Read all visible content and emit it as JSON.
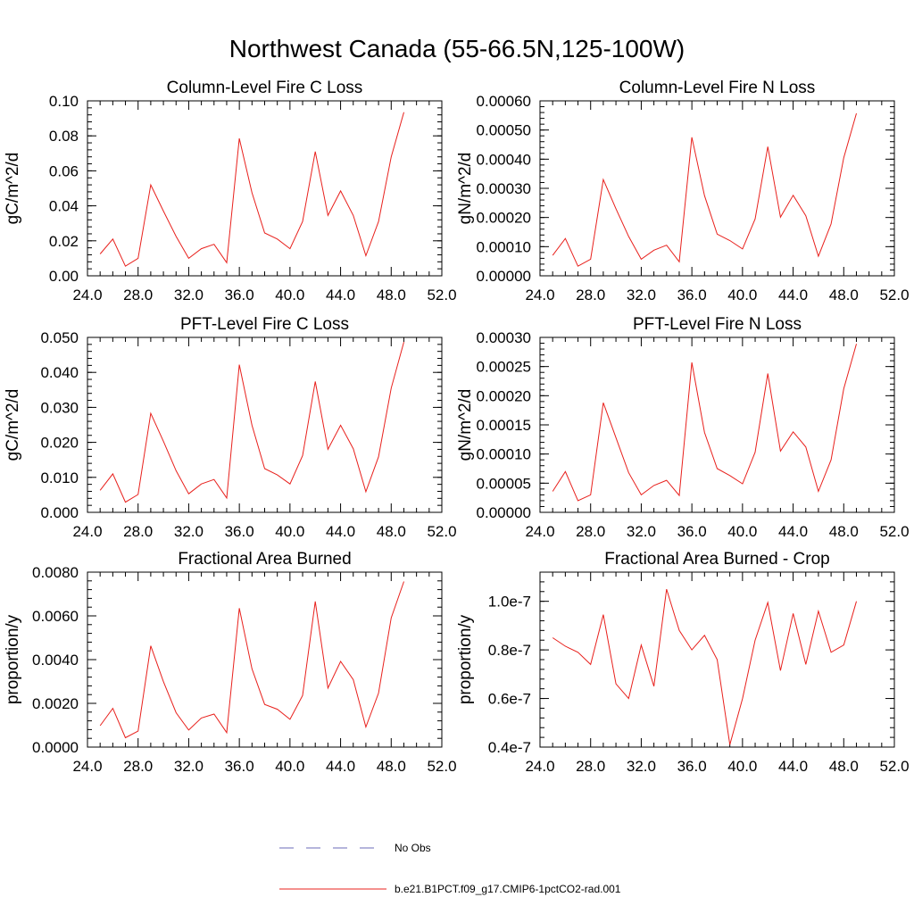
{
  "title": "Northwest Canada (55-66.5N,125-100W)",
  "legend": {
    "items": [
      {
        "label": "No Obs",
        "color": "#6b6bb8",
        "dash": true
      },
      {
        "label": "b.e21.B1PCT.f09_g17.CMIP6-1pctCO2-rad.001",
        "color": "#e8201c",
        "dash": false
      }
    ]
  },
  "line_color": "#e8201c",
  "chart_data": [
    {
      "type": "line",
      "title": "Column-Level Fire C Loss",
      "ylabel": "gC/m^2/d",
      "xlim": [
        24,
        52
      ],
      "ylim": [
        0,
        0.1
      ],
      "xticks": [
        "24.0",
        "28.0",
        "32.0",
        "36.0",
        "40.0",
        "44.0",
        "48.0",
        "52.0"
      ],
      "yticks": [
        "0.00",
        "0.02",
        "0.04",
        "0.06",
        "0.08",
        "0.10"
      ],
      "x": [
        25,
        26,
        27,
        28,
        29,
        30,
        31,
        32,
        33,
        34,
        35,
        36,
        37,
        38,
        39,
        40,
        41,
        42,
        43,
        44,
        45,
        46,
        47,
        48,
        49
      ],
      "series": [
        {
          "values": [
            0.0125,
            0.021,
            0.0055,
            0.01,
            0.052,
            0.037,
            0.0225,
            0.01,
            0.0155,
            0.018,
            0.0075,
            0.0785,
            0.0475,
            0.0245,
            0.021,
            0.0155,
            0.031,
            0.071,
            0.0345,
            0.0485,
            0.0345,
            0.0115,
            0.031,
            0.068,
            0.0935
          ]
        }
      ]
    },
    {
      "type": "line",
      "title": "Column-Level Fire N Loss",
      "ylabel": "gN/m^2/d",
      "xlim": [
        24,
        52
      ],
      "ylim": [
        0,
        0.0006
      ],
      "xticks": [
        "24.0",
        "28.0",
        "32.0",
        "36.0",
        "40.0",
        "44.0",
        "48.0",
        "52.0"
      ],
      "yticks": [
        "0.00000",
        "0.00010",
        "0.00020",
        "0.00030",
        "0.00040",
        "0.00050",
        "0.00060"
      ],
      "x": [
        25,
        26,
        27,
        28,
        29,
        30,
        31,
        32,
        33,
        34,
        35,
        36,
        37,
        38,
        39,
        40,
        41,
        42,
        43,
        44,
        45,
        46,
        47,
        48,
        49
      ],
      "series": [
        {
          "values": [
            7e-05,
            0.000128,
            3.3e-05,
            5.7e-05,
            0.00033,
            0.00023,
            0.000135,
            5.7e-05,
            8.8e-05,
            0.000105,
            4.8e-05,
            0.000475,
            0.000275,
            0.000143,
            0.000121,
            9.2e-05,
            0.000195,
            0.000443,
            0.000201,
            0.000276,
            0.000206,
            6.7e-05,
            0.000178,
            0.000405,
            0.000557
          ]
        }
      ]
    },
    {
      "type": "line",
      "title": "PFT-Level Fire C Loss",
      "ylabel": "gC/m^2/d",
      "xlim": [
        24,
        52
      ],
      "ylim": [
        0,
        0.05
      ],
      "xticks": [
        "24.0",
        "28.0",
        "32.0",
        "36.0",
        "40.0",
        "44.0",
        "48.0",
        "52.0"
      ],
      "yticks": [
        "0.000",
        "0.010",
        "0.020",
        "0.030",
        "0.040",
        "0.050"
      ],
      "x": [
        25,
        26,
        27,
        28,
        29,
        30,
        31,
        32,
        33,
        34,
        35,
        36,
        37,
        38,
        39,
        40,
        41,
        42,
        43,
        44,
        45,
        46,
        47,
        48,
        49
      ],
      "series": [
        {
          "values": [
            0.0063,
            0.011,
            0.0029,
            0.0051,
            0.0283,
            0.0203,
            0.0119,
            0.0053,
            0.0081,
            0.0094,
            0.0041,
            0.0422,
            0.0249,
            0.0125,
            0.0107,
            0.0081,
            0.0162,
            0.0374,
            0.018,
            0.0249,
            0.0182,
            0.0059,
            0.0159,
            0.0355,
            0.0487
          ]
        }
      ]
    },
    {
      "type": "line",
      "title": "PFT-Level Fire N Loss",
      "ylabel": "gN/m^2/d",
      "xlim": [
        24,
        52
      ],
      "ylim": [
        0,
        0.0003
      ],
      "xticks": [
        "24.0",
        "28.0",
        "32.0",
        "36.0",
        "40.0",
        "44.0",
        "48.0",
        "52.0"
      ],
      "yticks": [
        "0.00000",
        "0.00005",
        "0.00010",
        "0.00015",
        "0.00020",
        "0.00025",
        "0.00030"
      ],
      "x": [
        25,
        26,
        27,
        28,
        29,
        30,
        31,
        32,
        33,
        34,
        35,
        36,
        37,
        38,
        39,
        40,
        41,
        42,
        43,
        44,
        45,
        46,
        47,
        48,
        49
      ],
      "series": [
        {
          "values": [
            3.6e-05,
            7e-05,
            2e-05,
            3e-05,
            0.000188,
            0.000128,
            6.8e-05,
            3e-05,
            4.6e-05,
            5.5e-05,
            2.9e-05,
            0.000257,
            0.000137,
            7.5e-05,
            6.3e-05,
            4.9e-05,
            0.000103,
            0.000238,
            0.000105,
            0.000138,
            0.000112,
            3.6e-05,
            9e-05,
            0.000212,
            0.000289
          ]
        }
      ]
    },
    {
      "type": "line",
      "title": "Fractional Area Burned",
      "ylabel": "proportion/y",
      "xlim": [
        24,
        52
      ],
      "ylim": [
        0,
        0.008
      ],
      "xticks": [
        "24.0",
        "28.0",
        "32.0",
        "36.0",
        "40.0",
        "44.0",
        "48.0",
        "52.0"
      ],
      "yticks": [
        "0.0000",
        "0.0020",
        "0.0040",
        "0.0060",
        "0.0080"
      ],
      "x": [
        25,
        26,
        27,
        28,
        29,
        30,
        31,
        32,
        33,
        34,
        35,
        36,
        37,
        38,
        39,
        40,
        41,
        42,
        43,
        44,
        45,
        46,
        47,
        48,
        49
      ],
      "series": [
        {
          "values": [
            0.00098,
            0.00177,
            0.00043,
            0.00073,
            0.00463,
            0.00299,
            0.00157,
            0.00078,
            0.00133,
            0.00151,
            0.00066,
            0.00635,
            0.00358,
            0.00195,
            0.00173,
            0.00127,
            0.00236,
            0.00666,
            0.0027,
            0.00392,
            0.00308,
            0.00092,
            0.00247,
            0.00591,
            0.00757
          ]
        }
      ]
    },
    {
      "type": "line",
      "title": "Fractional Area Burned - Crop",
      "ylabel": "proportion/y",
      "xlim": [
        24,
        52
      ],
      "ylim": [
        4e-08,
        1.12e-07
      ],
      "xticks": [
        "24.0",
        "28.0",
        "32.0",
        "36.0",
        "40.0",
        "44.0",
        "48.0",
        "52.0"
      ],
      "yticks_values": [
        4e-08,
        6e-08,
        8e-08,
        1e-07
      ],
      "yticks": [
        "0.4e-7",
        "0.6e-7",
        "0.8e-7",
        "1.0e-7"
      ],
      "x": [
        25,
        26,
        27,
        28,
        29,
        30,
        31,
        32,
        33,
        34,
        35,
        36,
        37,
        38,
        39,
        40,
        41,
        42,
        43,
        44,
        45,
        46,
        47,
        48,
        49
      ],
      "series": [
        {
          "values": [
            8.5e-08,
            8.15e-08,
            7.9e-08,
            7.4e-08,
            9.45e-08,
            6.6e-08,
            6e-08,
            8.2e-08,
            6.5e-08,
            1.05e-07,
            8.8e-08,
            8e-08,
            8.6e-08,
            7.6e-08,
            4.1e-08,
            6e-08,
            8.4e-08,
            9.95e-08,
            7.15e-08,
            9.5e-08,
            7.4e-08,
            9.6e-08,
            7.9e-08,
            8.2e-08,
            1e-07
          ]
        }
      ]
    }
  ]
}
